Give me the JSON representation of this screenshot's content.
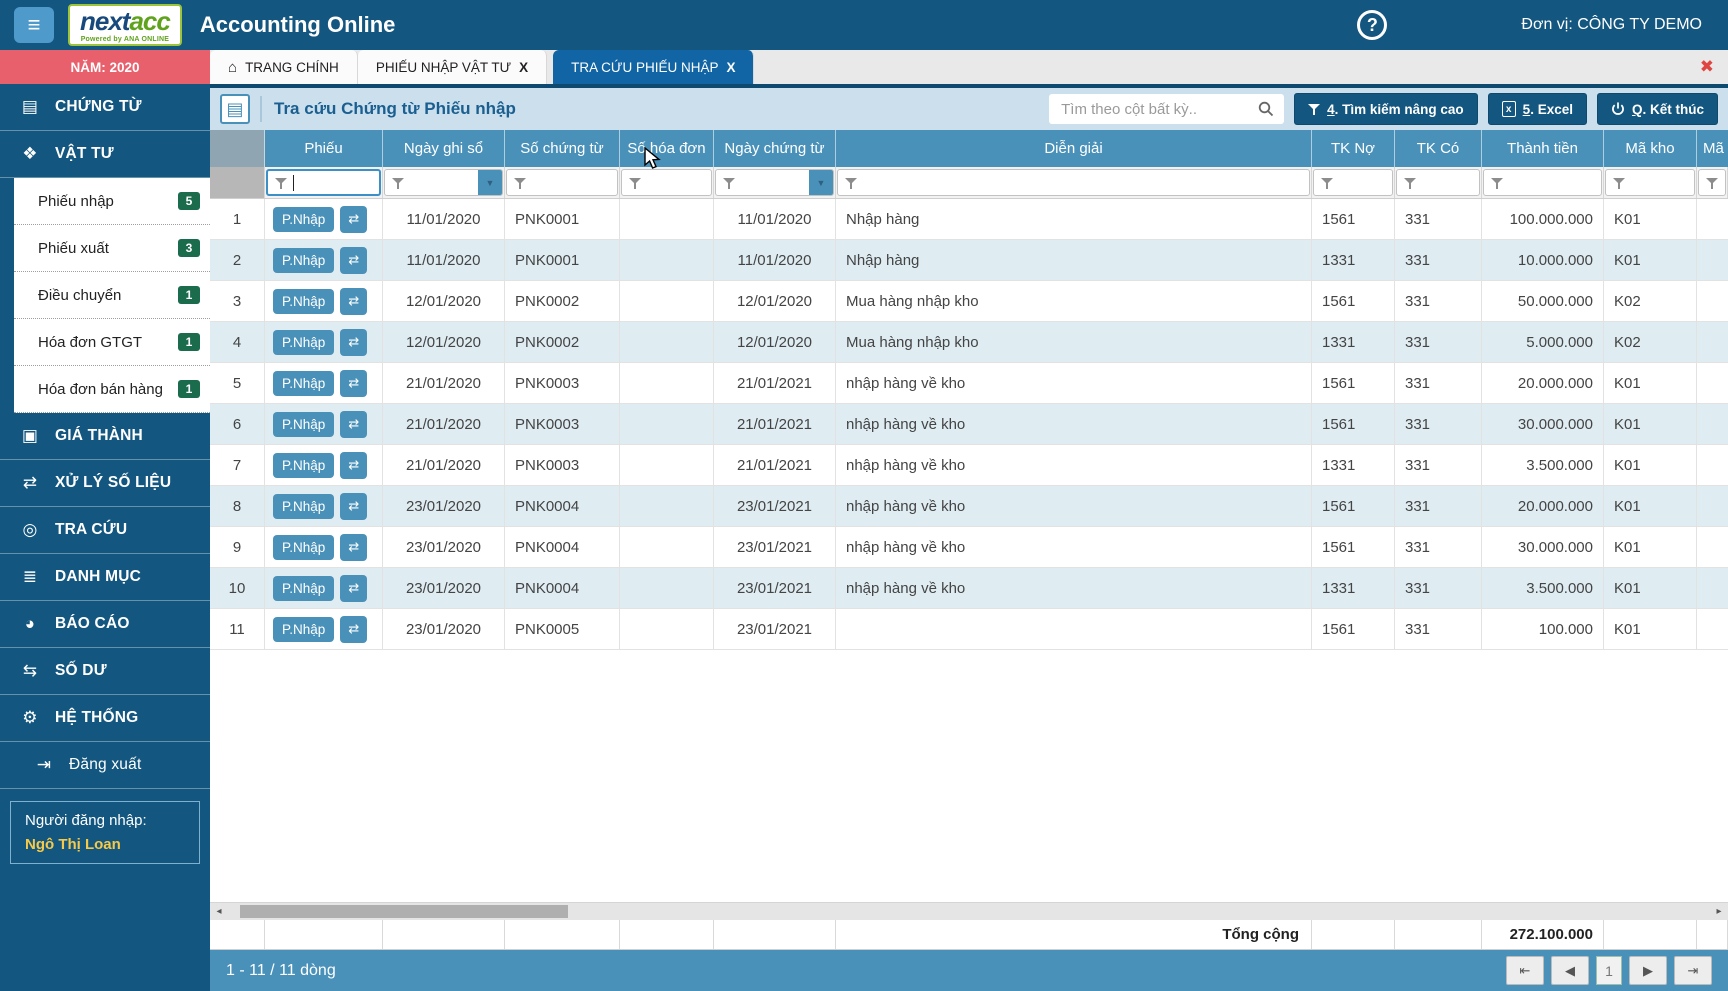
{
  "colors": {
    "primary_blue": "#13567F",
    "table_header_blue": "#4A91BA",
    "active_tab_blue": "#1265A4",
    "year_tab_red": "#E8606C",
    "badge_green": "#1B6B4D",
    "row_alt": "#DFEDF3",
    "username_yellow": "#F7C948",
    "close_x_red": "#E04641"
  },
  "icons": {
    "hamburger": "≡",
    "home": "⌂",
    "close": "✖",
    "help": "?",
    "excel": "x",
    "toolbar_list": "▤",
    "exchange": "⇄",
    "scroll_left": "◂",
    "scroll_right": "▸"
  },
  "topbar": {
    "brand_part1": "next",
    "brand_part2": "acc",
    "brand_tagline": "Powered by ANA ONLINE",
    "title": "Accounting Online",
    "unit_label": "Đơn vị: CÔNG TY DEMO"
  },
  "tabbar": {
    "year_tab": "NĂM: 2020",
    "tabs": [
      {
        "label": "TRANG CHÍNH",
        "icon": "home-icon",
        "close": ""
      },
      {
        "label": "PHIẾU NHẬP VẬT TƯ",
        "close": "X"
      },
      {
        "label": "TRA CỨU PHIẾU NHẬP",
        "close": "X",
        "active": true
      }
    ]
  },
  "sidebar": {
    "items": [
      {
        "id": "chung-tu",
        "label": "CHỨNG TỪ",
        "icon": "documents-icon",
        "glyph": "▤"
      },
      {
        "id": "vat-tu",
        "label": "VẬT TƯ",
        "icon": "materials-icon",
        "glyph": "❖",
        "submenu": [
          {
            "label": "Phiếu nhập",
            "badge": "5"
          },
          {
            "label": "Phiếu xuất",
            "badge": "3"
          },
          {
            "label": "Điều chuyển",
            "badge": "1"
          },
          {
            "label": "Hóa đơn GTGT",
            "badge": "1"
          },
          {
            "label": "Hóa đơn bán hàng",
            "badge": "1"
          }
        ]
      },
      {
        "id": "gia-thanh",
        "label": "GIÁ THÀNH",
        "icon": "money-icon",
        "glyph": "▣"
      },
      {
        "id": "xu-ly-so-lieu",
        "label": "XỬ LÝ SỐ LIỆU",
        "icon": "sync-icon",
        "glyph": "⇄"
      },
      {
        "id": "tra-cuu",
        "label": "TRA CỨU",
        "icon": "binoculars-icon",
        "glyph": "◎"
      },
      {
        "id": "danh-muc",
        "label": "DANH MỤC",
        "icon": "list-icon",
        "glyph": "≣"
      },
      {
        "id": "bao-cao",
        "label": "BÁO CÁO",
        "icon": "pie-chart-icon",
        "glyph": "◕"
      },
      {
        "id": "so-du",
        "label": "SỐ DƯ",
        "icon": "shuffle-icon",
        "glyph": "⇆"
      },
      {
        "id": "he-thong",
        "label": "HỆ THỐNG",
        "icon": "sitemap-icon",
        "glyph": "⚙"
      },
      {
        "id": "dang-xuat",
        "label": "Đăng xuất",
        "icon": "logout-icon",
        "glyph": "⇥",
        "type": "logout"
      }
    ],
    "user_label": "Người đăng nhập:",
    "user_name": "Ngô Thị Loan"
  },
  "toolbar": {
    "title": "Tra cứu Chứng từ Phiếu nhập",
    "search_placeholder": "Tìm theo cột bất kỳ..",
    "buttons": [
      {
        "icon": "filter-icon",
        "shortcut": "4",
        "label": ". Tìm kiếm nâng cao"
      },
      {
        "icon": "excel-icon",
        "shortcut": "5",
        "label": ". Excel"
      },
      {
        "icon": "power-icon",
        "shortcut": "Q",
        "label": ". Kết thúc"
      }
    ]
  },
  "table": {
    "columns": [
      "",
      "Phiếu",
      "Ngày ghi sổ",
      "Số chứng từ",
      "Số hóa đơn",
      "Ngày chứng từ",
      "Diễn giải",
      "TK Nợ",
      "TK Có",
      "Thành tiền",
      "Mã kho",
      "Mã"
    ],
    "action_label": "P.Nhập",
    "rows": [
      {
        "stt": "1",
        "ngay_ghi_so": "11/01/2020",
        "so_chung_tu": "PNK0001",
        "so_hoa_don": "",
        "ngay_chung_tu": "11/01/2020",
        "dien_giai": "Nhập hàng",
        "tk_no": "1561",
        "tk_co": "331",
        "thanh_tien": "100.000.000",
        "ma_kho": "K01",
        "ma": ""
      },
      {
        "stt": "2",
        "ngay_ghi_so": "11/01/2020",
        "so_chung_tu": "PNK0001",
        "so_hoa_don": "",
        "ngay_chung_tu": "11/01/2020",
        "dien_giai": "Nhập hàng",
        "tk_no": "1331",
        "tk_co": "331",
        "thanh_tien": "10.000.000",
        "ma_kho": "K01",
        "ma": ""
      },
      {
        "stt": "3",
        "ngay_ghi_so": "12/01/2020",
        "so_chung_tu": "PNK0002",
        "so_hoa_don": "",
        "ngay_chung_tu": "12/01/2020",
        "dien_giai": "Mua hàng nhập kho",
        "tk_no": "1561",
        "tk_co": "331",
        "thanh_tien": "50.000.000",
        "ma_kho": "K02",
        "ma": ""
      },
      {
        "stt": "4",
        "ngay_ghi_so": "12/01/2020",
        "so_chung_tu": "PNK0002",
        "so_hoa_don": "",
        "ngay_chung_tu": "12/01/2020",
        "dien_giai": "Mua hàng nhập kho",
        "tk_no": "1331",
        "tk_co": "331",
        "thanh_tien": "5.000.000",
        "ma_kho": "K02",
        "ma": ""
      },
      {
        "stt": "5",
        "ngay_ghi_so": "21/01/2020",
        "so_chung_tu": "PNK0003",
        "so_hoa_don": "",
        "ngay_chung_tu": "21/01/2021",
        "dien_giai": "nhập hàng về kho",
        "tk_no": "1561",
        "tk_co": "331",
        "thanh_tien": "20.000.000",
        "ma_kho": "K01",
        "ma": ""
      },
      {
        "stt": "6",
        "ngay_ghi_so": "21/01/2020",
        "so_chung_tu": "PNK0003",
        "so_hoa_don": "",
        "ngay_chung_tu": "21/01/2021",
        "dien_giai": "nhập hàng về kho",
        "tk_no": "1561",
        "tk_co": "331",
        "thanh_tien": "30.000.000",
        "ma_kho": "K01",
        "ma": ""
      },
      {
        "stt": "7",
        "ngay_ghi_so": "21/01/2020",
        "so_chung_tu": "PNK0003",
        "so_hoa_don": "",
        "ngay_chung_tu": "21/01/2021",
        "dien_giai": "nhập hàng về kho",
        "tk_no": "1331",
        "tk_co": "331",
        "thanh_tien": "3.500.000",
        "ma_kho": "K01",
        "ma": ""
      },
      {
        "stt": "8",
        "ngay_ghi_so": "23/01/2020",
        "so_chung_tu": "PNK0004",
        "so_hoa_don": "",
        "ngay_chung_tu": "23/01/2021",
        "dien_giai": "nhập hàng về kho",
        "tk_no": "1561",
        "tk_co": "331",
        "thanh_tien": "20.000.000",
        "ma_kho": "K01",
        "ma": ""
      },
      {
        "stt": "9",
        "ngay_ghi_so": "23/01/2020",
        "so_chung_tu": "PNK0004",
        "so_hoa_don": "",
        "ngay_chung_tu": "23/01/2021",
        "dien_giai": "nhập hàng về kho",
        "tk_no": "1561",
        "tk_co": "331",
        "thanh_tien": "30.000.000",
        "ma_kho": "K01",
        "ma": ""
      },
      {
        "stt": "10",
        "ngay_ghi_so": "23/01/2020",
        "so_chung_tu": "PNK0004",
        "so_hoa_don": "",
        "ngay_chung_tu": "23/01/2021",
        "dien_giai": "nhập hàng về kho",
        "tk_no": "1331",
        "tk_co": "331",
        "thanh_tien": "3.500.000",
        "ma_kho": "K01",
        "ma": ""
      },
      {
        "stt": "11",
        "ngay_ghi_so": "23/01/2020",
        "so_chung_tu": "PNK0005",
        "so_hoa_don": "",
        "ngay_chung_tu": "23/01/2021",
        "dien_giai": "",
        "tk_no": "1561",
        "tk_co": "331",
        "thanh_tien": "100.000",
        "ma_kho": "K01",
        "ma": ""
      }
    ],
    "footer": {
      "total_label": "Tổng cộng",
      "total_value": "272.100.000"
    }
  },
  "pagination": {
    "info": "1 - 11 / 11 dòng",
    "page": "1",
    "buttons": [
      {
        "icon": "first-page",
        "glyph": "⇤"
      },
      {
        "icon": "prev-page",
        "glyph": "◀"
      },
      {
        "icon": "next-page",
        "glyph": "▶"
      },
      {
        "icon": "last-page",
        "glyph": "⇥"
      }
    ]
  }
}
